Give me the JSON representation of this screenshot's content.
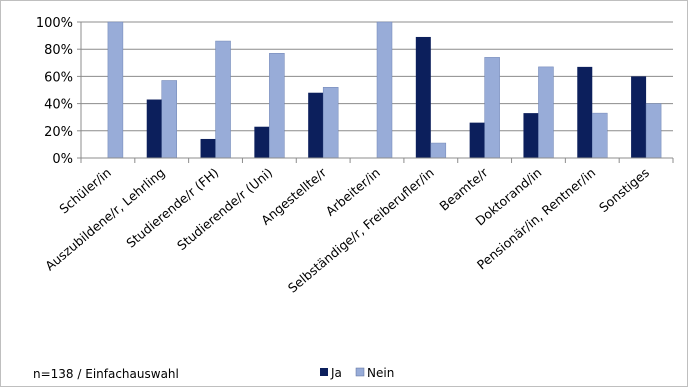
{
  "footer": {
    "note": "n=138 / Einfachauswahl"
  },
  "colors": {
    "ja": "#0c1f5c",
    "nein": "#98acd8",
    "axis": "#8c8c8c",
    "grid": "#8c8c8c"
  },
  "chart_data": {
    "type": "bar",
    "categories": [
      "Schüler/in",
      "Auszubildene/r, Lehrling",
      "Studierende/r (FH)",
      "Studierende/r (Uni)",
      "Angestellte/r",
      "Arbeiter/in",
      "Selbständige/r, Freiberufler/in",
      "Beamte/r",
      "Doktorand/in",
      "Pensionär/in, Rentner/in",
      "Sonstiges"
    ],
    "series": [
      {
        "name": "Ja",
        "values": [
          0,
          43,
          14,
          23,
          48,
          0,
          89,
          26,
          33,
          67,
          60
        ]
      },
      {
        "name": "Nein",
        "values": [
          100,
          57,
          86,
          77,
          52,
          100,
          11,
          74,
          67,
          33,
          40
        ]
      }
    ],
    "ylim": [
      0,
      100
    ],
    "yticks": [
      "0%",
      "20%",
      "40%",
      "60%",
      "80%",
      "100%"
    ],
    "grid": true,
    "legend": {
      "position": "bottom",
      "entries": [
        "Ja",
        "Nein"
      ]
    }
  }
}
